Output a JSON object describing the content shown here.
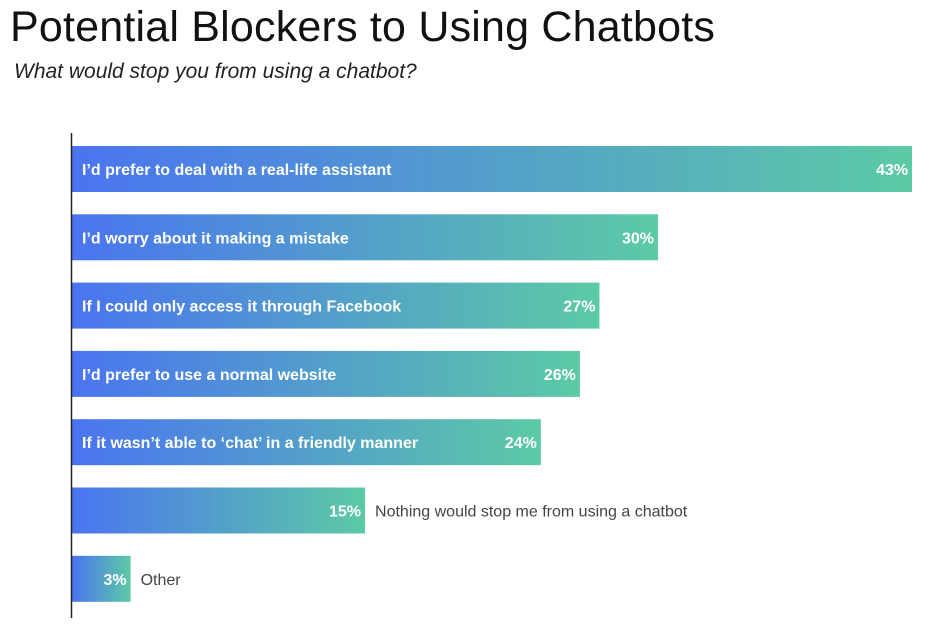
{
  "chart_data": {
    "type": "bar",
    "orientation": "horizontal",
    "title": "Potential Blockers to Using Chatbots",
    "subtitle": "What would stop you from using a chatbot?",
    "categories": [
      "I’d prefer to deal with a real-life assistant",
      "I’d worry about it making a mistake",
      "If I could only access it through Facebook",
      "I’d prefer to use a normal website",
      "If it wasn’t able to ‘chat’ in a friendly manner",
      "Nothing would stop me from using a chatbot",
      "Other"
    ],
    "values": [
      43,
      30,
      27,
      26,
      24,
      15,
      3
    ],
    "value_labels": [
      "43%",
      "30%",
      "27%",
      "26%",
      "24%",
      "15%",
      "3%"
    ],
    "label_position": [
      "inside",
      "inside",
      "inside",
      "inside",
      "inside",
      "outside",
      "outside"
    ],
    "xlim": [
      0,
      43
    ],
    "grid": false,
    "bar_gradient": [
      "#4a74f0",
      "#5ccaa5"
    ]
  }
}
